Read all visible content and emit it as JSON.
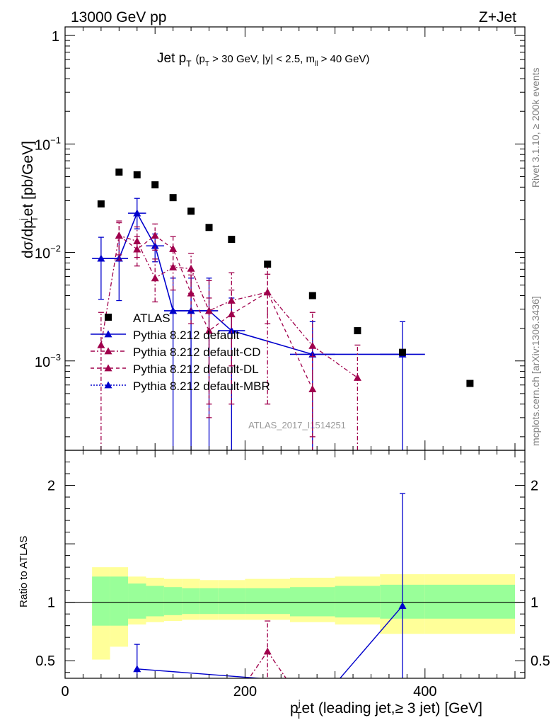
{
  "header": {
    "energy_label": "13000 GeV pp",
    "process_label": "Z+Jet",
    "plot_title_main": "Jet p",
    "plot_title_sub": "T",
    "plot_title_cuts": "(p",
    "plot_title_cuts_T": "T",
    "plot_title_cuts_rest": " > 30 GeV, |y| < 2.5, m",
    "plot_title_cuts_ll": "ll",
    "plot_title_cuts_end": " > 40 GeV)"
  },
  "side_labels": {
    "rivet": "Rivet 3.1.10, ≥ 200k events",
    "mcplots": "mcplots.cern.ch [arXiv:1306.3436]"
  },
  "watermark": "ATLAS_2017_I1514251",
  "axes": {
    "main_ylabel": "dσ/dp",
    "main_ylabel_sup": "j",
    "main_ylabel_sub": "T",
    "main_ylabel_rest": "et [pb/GeV]",
    "ratio_ylabel": "Ratio to ATLAS",
    "xlabel_p": "p",
    "xlabel_sup": "j",
    "xlabel_sub": "T",
    "xlabel_rest": "et (leading jet,≥ 3 jet) [GeV]",
    "main_yticks": [
      {
        "value": 1,
        "label": "1"
      },
      {
        "value": 0.1,
        "label": "10",
        "exp": "−1"
      },
      {
        "value": 0.01,
        "label": "10",
        "exp": "−2"
      },
      {
        "value": 0.001,
        "label": "10",
        "exp": "−3"
      }
    ],
    "ratio_yticks": [
      {
        "value": 0.5,
        "label": "0.5"
      },
      {
        "value": 1,
        "label": "1"
      },
      {
        "value": 2,
        "label": "2"
      }
    ],
    "xticks": [
      {
        "value": 0,
        "label": "0"
      },
      {
        "value": 200,
        "label": "200"
      },
      {
        "value": 400,
        "label": "400"
      }
    ]
  },
  "legend": [
    {
      "label": "ATLAS",
      "color": "#000000",
      "style": "marker-square"
    },
    {
      "label": "Pythia 8.212 default",
      "color": "#0000cc",
      "style": "solid"
    },
    {
      "label": "Pythia 8.212 default-CD",
      "color": "#a0004c",
      "style": "dashdot"
    },
    {
      "label": "Pythia 8.212 default-DL",
      "color": "#a0004c",
      "style": "dashed"
    },
    {
      "label": "Pythia 8.212 default-MBR",
      "color": "#0000cc",
      "style": "dotted"
    }
  ],
  "chart_data": {
    "type": "scatter",
    "title": "Jet pT (pT > 30 GeV, |y| < 2.5, mll > 40 GeV)",
    "xlabel": "pTjet (leading jet, ≥ 3 jet) [GeV]",
    "ylabel": "dσ/dpTjet [pb/GeV]",
    "xlim": [
      0,
      500
    ],
    "ylim": [
      0.00015,
      1.2
    ],
    "yscale": "log",
    "ratio_ylim": [
      0.35,
      2.3
    ],
    "colors": {
      "atlas": "#000000",
      "default": "#0000cc",
      "cd": "#a0004c",
      "dl": "#a0004c",
      "band_inner": "#99ff99",
      "band_outer": "#ffff99"
    },
    "atlas": {
      "x": [
        40,
        60,
        80,
        100,
        120,
        140,
        160,
        185,
        225,
        275,
        325,
        375,
        450
      ],
      "y": [
        0.028,
        0.055,
        0.052,
        0.042,
        0.032,
        0.024,
        0.017,
        0.0132,
        0.0078,
        0.004,
        0.0019,
        0.0012,
        0.00062
      ]
    },
    "series": [
      {
        "name": "Pythia 8.212 default",
        "key": "default",
        "x": [
          40,
          60,
          80,
          100,
          120,
          140,
          160,
          185,
          275,
          375
        ],
        "xerr": [
          10,
          10,
          10,
          10,
          10,
          10,
          10,
          15,
          25,
          25
        ],
        "y": [
          0.0088,
          0.0088,
          0.023,
          0.0115,
          0.0029,
          0.0029,
          0.0029,
          0.0019,
          0.00115,
          0.00115
        ],
        "ylo": [
          0.0037,
          0.0036,
          0.0165,
          0.0082,
          0.0001,
          0.0001,
          0.0001,
          0.0001,
          0.0001,
          0.0001
        ],
        "yhi": [
          0.0138,
          0.014,
          0.0315,
          0.0148,
          0.0058,
          0.0058,
          0.0058,
          0.0038,
          0.0023,
          0.0023
        ]
      },
      {
        "name": "Pythia 8.212 default-CD",
        "key": "cd",
        "x": [
          40,
          60,
          80,
          100,
          120,
          140,
          160,
          185,
          225,
          275,
          325
        ],
        "y": [
          0.0014,
          0.0143,
          0.0127,
          0.0058,
          0.0073,
          0.0071,
          0.0029,
          0.0036,
          0.0043,
          0.00138,
          0.0007
        ],
        "ylo": [
          0.00015,
          0.0085,
          0.009,
          0.0035,
          0.0045,
          0.0042,
          0.0004,
          0.0004,
          0.0004,
          0.0002,
          0.00015
        ],
        "yhi": [
          0.0028,
          0.0195,
          0.0172,
          0.0087,
          0.0105,
          0.0098,
          0.0055,
          0.0065,
          0.0076,
          0.0028,
          0.0014
        ]
      },
      {
        "name": "Pythia 8.212 default-DL",
        "key": "dl",
        "x": [
          60,
          80,
          100,
          120,
          140,
          160,
          185,
          225,
          275
        ],
        "y": [
          0.0143,
          0.0107,
          0.0143,
          0.0108,
          0.0042,
          0.0019,
          0.0027,
          0.0043,
          0.00055
        ],
        "ylo": [
          0.0095,
          0.0075,
          0.0105,
          0.0075,
          0.0022,
          0.0003,
          0.0009,
          0.0022,
          0.00015
        ],
        "yhi": [
          0.0188,
          0.014,
          0.0183,
          0.014,
          0.0062,
          0.0038,
          0.0045,
          0.0063,
          0.0011
        ]
      }
    ],
    "ratio": {
      "band_edges": [
        30,
        50,
        70,
        90,
        110,
        130,
        150,
        170,
        200,
        250,
        300,
        350,
        400,
        500
      ],
      "inner_lo": [
        0.8,
        0.8,
        0.86,
        0.88,
        0.89,
        0.9,
        0.9,
        0.9,
        0.9,
        0.88,
        0.87,
        0.86,
        0.86
      ],
      "inner_hi": [
        1.22,
        1.22,
        1.16,
        1.14,
        1.13,
        1.12,
        1.12,
        1.12,
        1.12,
        1.13,
        1.14,
        1.15,
        1.15
      ],
      "outer_lo": [
        0.51,
        0.62,
        0.81,
        0.83,
        0.84,
        0.85,
        0.85,
        0.85,
        0.85,
        0.83,
        0.81,
        0.73,
        0.73
      ],
      "outer_hi": [
        1.3,
        1.3,
        1.22,
        1.21,
        1.2,
        1.2,
        1.19,
        1.19,
        1.2,
        1.21,
        1.22,
        1.24,
        1.24
      ],
      "default": {
        "x": [
          80,
          300,
          375
        ],
        "y": [
          0.43,
          0.3,
          0.97
        ],
        "ylo": [
          0.3,
          0.3,
          0.3
        ],
        "yhi": [
          0.64,
          0.3,
          1.93
        ],
        "markers": [
          true,
          false,
          true
        ]
      },
      "cd": {
        "x": [
          200,
          225,
          250
        ],
        "y": [
          0.3,
          0.58,
          0.3
        ],
        "ylo": [
          0.3,
          0.36,
          0.3
        ],
        "yhi": [
          0.3,
          0.84,
          0.3
        ],
        "markers": [
          false,
          true,
          false
        ]
      }
    }
  }
}
